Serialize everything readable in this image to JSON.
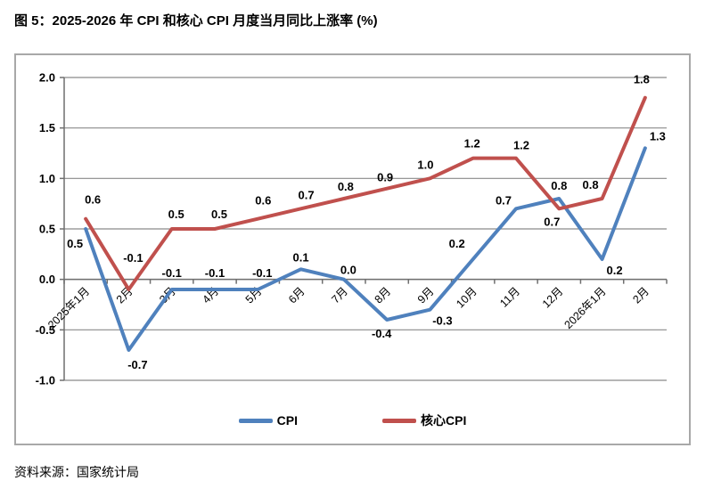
{
  "title": "图 5：2025-2026 年 CPI 和核心 CPI 月度当月同比上涨率 (%)",
  "source": "资料来源：国家统计局",
  "colors": {
    "cpi_line": "#4F81BD",
    "core_cpi_line": "#C0504D",
    "gridline": "#8a8a8a",
    "axis": "#6f6f6f",
    "frame_border": "#a8a8a8",
    "label_text": "#000000"
  },
  "chart_data": {
    "type": "line",
    "title": "图 5：2025-2026 年 CPI 和核心 CPI 月度当月同比上涨率 (%)",
    "categories": [
      "2025年1月",
      "2月",
      "3月",
      "4月",
      "5月",
      "6月",
      "7月",
      "8月",
      "9月",
      "10月",
      "11月",
      "12月",
      "2026年1月",
      "2月"
    ],
    "series": [
      {
        "name": "CPI",
        "color": "#4F81BD",
        "values": [
          0.5,
          -0.7,
          -0.1,
          -0.1,
          -0.1,
          0.1,
          0.0,
          -0.4,
          -0.3,
          0.2,
          0.7,
          0.8,
          0.2,
          1.3
        ]
      },
      {
        "name": "核心CPI",
        "color": "#C0504D",
        "values": [
          0.6,
          -0.1,
          0.5,
          0.5,
          0.6,
          0.7,
          0.8,
          0.9,
          1.0,
          1.2,
          1.2,
          0.7,
          0.8,
          1.8
        ]
      }
    ],
    "ylim": [
      -1.0,
      2.0
    ],
    "ytick_step": 0.5,
    "ytick_labels": [
      "2.0",
      "1.5",
      "1.0",
      "0.5",
      "0.0",
      "-0.5",
      "-1.0"
    ],
    "data_labels": true,
    "grid": true,
    "legend_position": "bottom",
    "xlabel": "",
    "ylabel": ""
  }
}
